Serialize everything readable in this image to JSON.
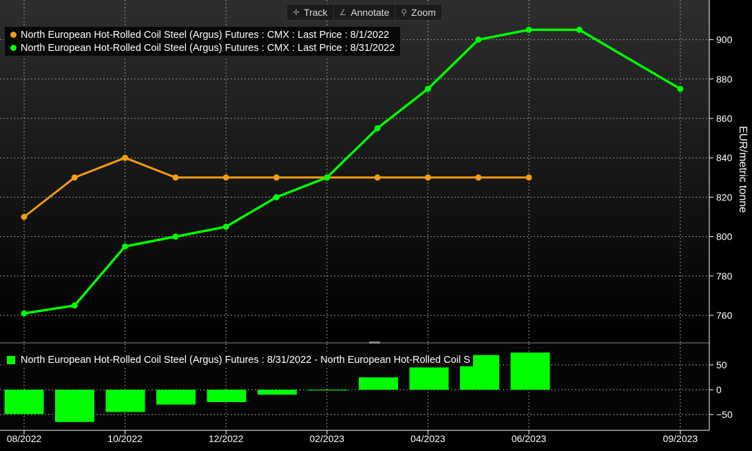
{
  "toolbar": {
    "track": "Track",
    "annotate": "Annotate",
    "zoom": "Zoom"
  },
  "legend": {
    "series1": "North European Hot-Rolled Coil Steel (Argus) Futures : CMX : Last Price : 8/1/2022",
    "series2": "North European Hot-Rolled Coil Steel (Argus) Futures : CMX : Last Price : 8/31/2022",
    "diff": "North European Hot-Rolled Coil Steel (Argus) Futures : 8/31/2022 - North European Hot-Rolled Coil S"
  },
  "colors": {
    "series1": "#f39c12",
    "series2": "#00ff00",
    "diff": "#00ff00",
    "grid": "#9a9a9a",
    "axis": "#ffffff"
  },
  "chart_data": {
    "type": "line",
    "x": [
      "08/2022",
      "09/2022",
      "10/2022",
      "11/2022",
      "12/2022",
      "01/2023",
      "02/2023",
      "03/2023",
      "04/2023",
      "05/2023",
      "06/2023",
      "07/2023",
      "09/2023"
    ],
    "xticks": [
      "08/2022",
      "10/2022",
      "12/2022",
      "02/2023",
      "04/2023",
      "06/2023",
      "09/2023"
    ],
    "ylabel": "EUR/metric tonne",
    "ylim": [
      745,
      925
    ],
    "yticks": [
      760,
      780,
      800,
      820,
      840,
      860,
      880,
      900
    ],
    "series": [
      {
        "name": "North European Hot-Rolled Coil Steel (Argus) Futures : CMX : Last Price : 8/1/2022",
        "values": [
          810,
          830,
          840,
          830,
          830,
          830,
          830,
          830,
          830,
          830,
          830,
          null,
          null
        ]
      },
      {
        "name": "North European Hot-Rolled Coil Steel (Argus) Futures : CMX : Last Price : 8/31/2022",
        "values": [
          761,
          765,
          795,
          800,
          805,
          820,
          830,
          855,
          875,
          900,
          905,
          905,
          875
        ]
      }
    ],
    "diff_panel": {
      "type": "bar",
      "name": "North European Hot-Rolled Coil Steel (Argus) Futures : 8/31/2022 - North European Hot-Rolled Coil S",
      "values": [
        -49,
        -65,
        -45,
        -30,
        -25,
        -10,
        0,
        25,
        45,
        70,
        75
      ],
      "yticks": [
        50,
        0,
        -50
      ],
      "ylim": [
        -70,
        85
      ]
    }
  }
}
